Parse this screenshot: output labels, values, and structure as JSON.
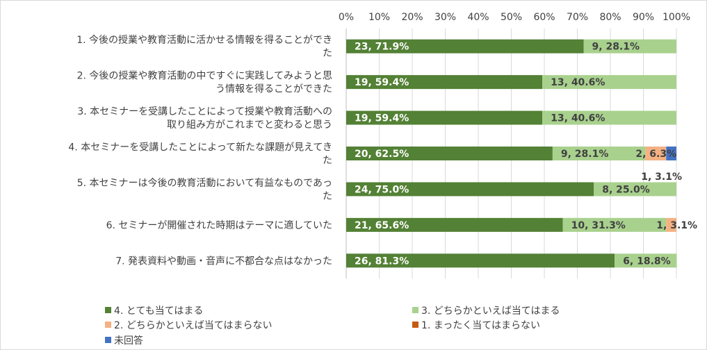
{
  "chart_data": {
    "type": "bar",
    "orientation": "horizontal",
    "stacked": true,
    "percent": true,
    "xlim": [
      0,
      100
    ],
    "x_ticks": [
      "0%",
      "10%",
      "20%",
      "30%",
      "40%",
      "50%",
      "60%",
      "70%",
      "80%",
      "90%",
      "100%"
    ],
    "grid": "vertical",
    "legend_position": "bottom",
    "categories": [
      [
        "1. 今後の授業や教育活動に活かせる情報を得ることができ",
        "た"
      ],
      [
        "2. 今後の授業や教育活動の中ですぐに実践してみようと思",
        "う情報を得ることができた"
      ],
      [
        "3. 本セミナーを受講したことによって授業や教育活動への",
        "取り組み方がこれまでと変わると思う"
      ],
      [
        "4. 本セミナーを受講したことによって新たな課題が見えてき",
        "た"
      ],
      [
        "5. 本セミナーは今後の教育活動において有益なものであっ",
        "た"
      ],
      [
        "6. セミナーが開催された時期はテーマに適していた"
      ],
      [
        "7. 発表資料や動画・音声に不都合な点はなかった"
      ]
    ],
    "series": [
      {
        "name": "4. とても当てはまる",
        "color": "#538135",
        "label_color": "#ffffff",
        "values": [
          71.9,
          59.4,
          59.4,
          62.5,
          75.0,
          65.6,
          81.3
        ],
        "labels": [
          "23, 71.9%",
          "19, 59.4%",
          "19, 59.4%",
          "20, 62.5%",
          "24, 75.0%",
          "21, 65.6%",
          "26, 81.3%"
        ]
      },
      {
        "name": "3. どちらかといえば当てはまる",
        "color": "#a9d18e",
        "label_color": "#404040",
        "values": [
          28.1,
          40.6,
          40.6,
          28.1,
          25.0,
          31.3,
          18.8
        ],
        "labels": [
          "9, 28.1%",
          "13, 40.6%",
          "13, 40.6%",
          "9, 28.1%",
          "8, 25.0%",
          "10, 31.3%",
          "6, 18.8%"
        ]
      },
      {
        "name": "2. どちらかといえば当てはまらない",
        "color": "#f4b183",
        "label_color": "#404040",
        "values": [
          0,
          0,
          0,
          6.3,
          0,
          3.1,
          0
        ],
        "labels": [
          "",
          "",
          "",
          "2, 6.3%",
          "",
          "1, 3.1%",
          ""
        ]
      },
      {
        "name": "1. まったく当てはまらない",
        "color": "#c55a11",
        "label_color": "#404040",
        "values": [
          0,
          0,
          0,
          0,
          0,
          0,
          0
        ],
        "labels": [
          "",
          "",
          "",
          "",
          "",
          "",
          ""
        ]
      },
      {
        "name": "未回答",
        "color": "#4472c4",
        "label_color": "#404040",
        "values": [
          0,
          0,
          0,
          3.1,
          0,
          0,
          0
        ],
        "labels": [
          "",
          "",
          "",
          "1, 3.1%",
          "",
          "",
          ""
        ]
      }
    ]
  }
}
